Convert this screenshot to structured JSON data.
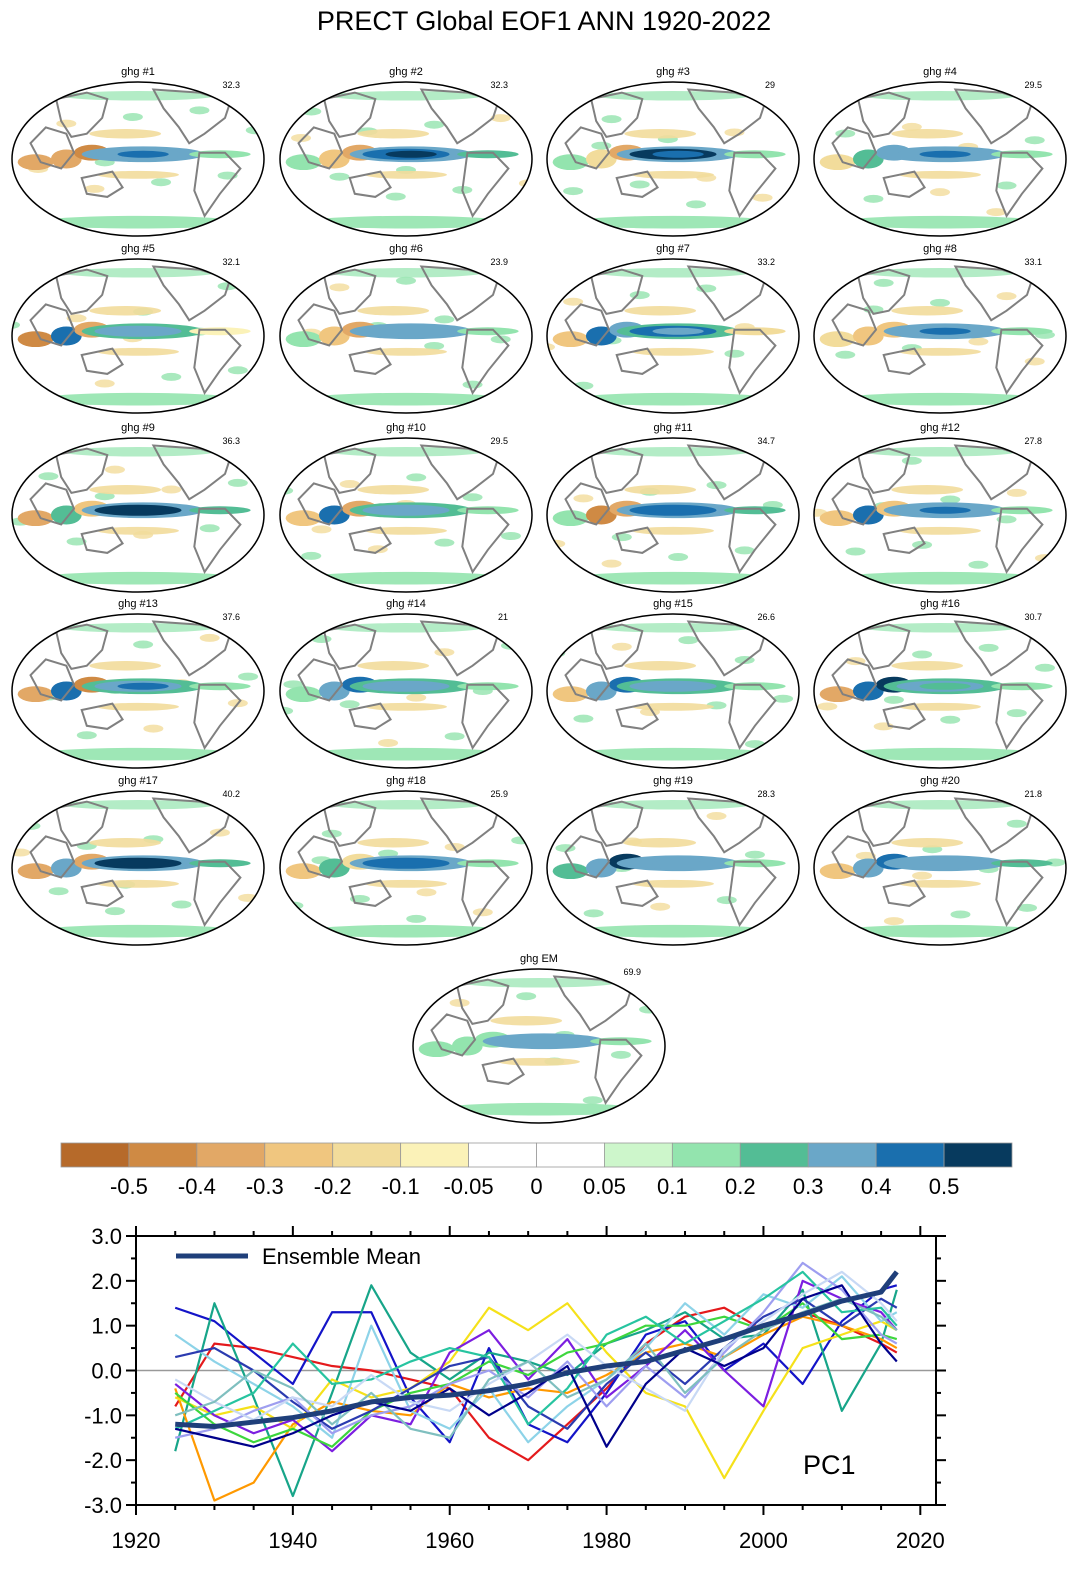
{
  "title": "PRECT Global EOF1 ANN 1920-2022",
  "panels": [
    {
      "label": "ghg #1",
      "pct": "32.3",
      "pattern": [
        -0.35,
        -0.4,
        -0.45,
        0.3,
        0.45,
        0.3,
        0.15,
        0.1
      ]
    },
    {
      "label": "ghg #2",
      "pct": "32.3",
      "pattern": [
        0.15,
        -0.3,
        -0.4,
        0.4,
        0.5,
        0.35,
        0.2,
        0.1
      ]
    },
    {
      "label": "ghg #3",
      "pct": "29",
      "pattern": [
        0.1,
        -0.2,
        -0.35,
        0.5,
        0.4,
        0.3,
        0.15,
        0.1
      ]
    },
    {
      "label": "ghg #4",
      "pct": "29.5",
      "pattern": [
        -0.2,
        0.2,
        0.3,
        0.3,
        0.4,
        0.3,
        0.15,
        0.1
      ]
    },
    {
      "label": "ghg #5",
      "pct": "32.1",
      "pattern": [
        -0.45,
        0.4,
        -0.35,
        0.35,
        0.3,
        0.25,
        -0.1,
        0.1
      ]
    },
    {
      "label": "ghg #6",
      "pct": "23.9",
      "pattern": [
        0.15,
        -0.3,
        -0.35,
        0.3,
        0.35,
        0.3,
        0.15,
        0.1
      ]
    },
    {
      "label": "ghg #7",
      "pct": "33.2",
      "pattern": [
        -0.3,
        0.45,
        0.35,
        0.4,
        0.35,
        0.2,
        -0.2,
        0.1
      ]
    },
    {
      "label": "ghg #8",
      "pct": "33.1",
      "pattern": [
        -0.2,
        -0.3,
        -0.3,
        0.3,
        0.4,
        0.35,
        0.15,
        0.1
      ]
    },
    {
      "label": "ghg #9",
      "pct": "36.3",
      "pattern": [
        -0.4,
        0.2,
        -0.3,
        0.5,
        0.5,
        0.35,
        0.2,
        0.1
      ]
    },
    {
      "label": "ghg #10",
      "pct": "29.5",
      "pattern": [
        -0.3,
        0.4,
        -0.4,
        0.35,
        0.3,
        0.25,
        0.15,
        0.1
      ]
    },
    {
      "label": "ghg #11",
      "pct": "34.7",
      "pattern": [
        0.15,
        -0.45,
        -0.35,
        0.4,
        0.45,
        0.35,
        0.2,
        0.1
      ]
    },
    {
      "label": "ghg #12",
      "pct": "27.8",
      "pattern": [
        -0.3,
        0.4,
        -0.3,
        0.35,
        0.4,
        0.3,
        0.15,
        0.1
      ]
    },
    {
      "label": "ghg #13",
      "pct": "37.6",
      "pattern": [
        -0.35,
        0.4,
        -0.45,
        0.3,
        0.4,
        0.25,
        0.15,
        0.1
      ]
    },
    {
      "label": "ghg #14",
      "pct": "21",
      "pattern": [
        0.15,
        0.3,
        0.45,
        0.3,
        0.3,
        0.2,
        0.1,
        0.1
      ]
    },
    {
      "label": "ghg #15",
      "pct": "26.6",
      "pattern": [
        -0.3,
        0.35,
        0.4,
        0.35,
        0.3,
        0.25,
        0.15,
        0.1
      ]
    },
    {
      "label": "ghg #16",
      "pct": "30.7",
      "pattern": [
        -0.35,
        0.4,
        0.5,
        0.3,
        0.25,
        0.2,
        0.15,
        0.1
      ]
    },
    {
      "label": "ghg #17",
      "pct": "40.2",
      "pattern": [
        -0.35,
        0.3,
        -0.35,
        0.5,
        0.55,
        0.35,
        0.2,
        0.1
      ]
    },
    {
      "label": "ghg #18",
      "pct": "25.9",
      "pattern": [
        -0.3,
        0.25,
        -0.2,
        0.45,
        0.4,
        0.3,
        0.15,
        0.1
      ]
    },
    {
      "label": "ghg #19",
      "pct": "28.3",
      "pattern": [
        0.2,
        0.3,
        0.5,
        0.35,
        0.35,
        0.3,
        0.15,
        0.1
      ]
    },
    {
      "label": "ghg #20",
      "pct": "21.8",
      "pattern": [
        -0.3,
        0.3,
        0.45,
        0.3,
        0.3,
        0.35,
        0.2,
        0.1
      ]
    },
    {
      "label": "ghg EM",
      "pct": "69.9",
      "pattern": [
        0.1,
        0.15,
        0.15,
        0.3,
        0.35,
        0.3,
        0.15,
        0.1
      ]
    }
  ],
  "colorbar": {
    "labels": [
      "-0.5",
      "-0.4",
      "-0.3",
      "-0.2",
      "-0.1",
      "-0.05",
      "0",
      "0.05",
      "0.1",
      "0.2",
      "0.3",
      "0.4",
      "0.5"
    ],
    "colors": [
      "#b66a2a",
      "#cf8a44",
      "#e2a866",
      "#f0c67f",
      "#f2dc9b",
      "#fbf2b8",
      "#ffffff",
      "#ffffff",
      "#cdf6cb",
      "#93e4ae",
      "#53bd95",
      "#6aa7c8",
      "#1a6fae",
      "#073a5e"
    ],
    "bounds": [
      -0.5,
      0.5
    ]
  },
  "chart_data": {
    "type": "line",
    "annotation": "PC1",
    "xlim": [
      1920,
      2022
    ],
    "ylim": [
      -3.0,
      3.0
    ],
    "xticks": [
      1920,
      1940,
      1960,
      1980,
      2000,
      2020
    ],
    "yticks": [
      3.0,
      2.0,
      1.0,
      0.0,
      -1.0,
      -2.0,
      -3.0
    ],
    "ytick_labels": [
      "3.0",
      "2.0",
      "1.0",
      "0.0",
      "-1.0",
      "-2.0",
      "-3.0"
    ],
    "grid": false,
    "legend_position": "top-left",
    "ensemble_mean": {
      "name": "Ensemble Mean",
      "color": "#1f3f7a",
      "x": [
        1925,
        1930,
        1935,
        1940,
        1945,
        1950,
        1955,
        1960,
        1965,
        1970,
        1975,
        1980,
        1985,
        1990,
        1995,
        2000,
        2005,
        2010,
        2015,
        2017
      ],
      "values": [
        -1.2,
        -1.25,
        -1.15,
        -1.05,
        -0.9,
        -0.7,
        -0.6,
        -0.55,
        -0.45,
        -0.3,
        -0.05,
        0.1,
        0.2,
        0.45,
        0.7,
        1.0,
        1.25,
        1.55,
        1.75,
        2.2
      ]
    },
    "members": [
      {
        "color": "#e41a1c",
        "values": [
          -0.8,
          0.6,
          0.5,
          0.3,
          0.1,
          0.0,
          -0.2,
          -0.4,
          -1.5,
          -2.0,
          -1.2,
          -0.4,
          0.6,
          1.2,
          1.4,
          0.9,
          1.3,
          1.0,
          0.6,
          0.4
        ]
      },
      {
        "color": "#1414c8",
        "values": [
          1.4,
          1.1,
          0.4,
          -0.3,
          1.3,
          1.3,
          -0.6,
          -1.6,
          0.5,
          -1.2,
          -1.6,
          -0.5,
          0.8,
          1.1,
          0.0,
          0.6,
          -0.3,
          1.1,
          1.8,
          1.9
        ]
      },
      {
        "color": "#17a589",
        "values": [
          -1.8,
          1.5,
          -0.6,
          -2.8,
          -0.5,
          1.9,
          0.4,
          -0.2,
          0.4,
          0.2,
          -0.1,
          0.6,
          0.9,
          1.3,
          0.7,
          0.8,
          1.8,
          -0.9,
          0.6,
          1.8
        ]
      },
      {
        "color": "#ff9900",
        "values": [
          -0.4,
          -2.9,
          -2.5,
          -1.2,
          -0.7,
          -0.9,
          -1.0,
          -0.3,
          -0.6,
          -0.4,
          -0.5,
          -0.1,
          0.4,
          0.6,
          0.3,
          0.8,
          1.2,
          1.0,
          0.7,
          0.5
        ]
      },
      {
        "color": "#f5e11a",
        "values": [
          -0.6,
          -1.0,
          -0.8,
          -1.3,
          -0.2,
          -0.6,
          -0.4,
          0.2,
          1.4,
          0.9,
          1.5,
          0.4,
          -0.5,
          -0.8,
          -2.4,
          -0.9,
          0.5,
          0.8,
          1.1,
          0.9
        ]
      },
      {
        "color": "#7c1ee0",
        "values": [
          -0.3,
          -1.0,
          -1.4,
          -1.1,
          -1.8,
          -1.0,
          -1.2,
          0.4,
          0.9,
          -0.2,
          0.7,
          -0.6,
          0.1,
          0.9,
          0.0,
          -0.8,
          2.0,
          1.6,
          1.3,
          0.9
        ]
      },
      {
        "color": "#3dd63d",
        "values": [
          -0.5,
          -1.2,
          -1.6,
          -1.3,
          -1.7,
          -0.9,
          -0.5,
          -0.3,
          0.2,
          -0.1,
          0.4,
          0.6,
          1.0,
          1.0,
          1.2,
          0.9,
          1.5,
          0.7,
          0.8,
          0.7
        ]
      },
      {
        "color": "#8dd3e8",
        "values": [
          0.8,
          0.2,
          -0.3,
          -0.8,
          -1.5,
          1.0,
          -0.9,
          -1.3,
          -0.4,
          -1.6,
          -0.8,
          -0.2,
          0.5,
          1.5,
          0.8,
          1.7,
          1.4,
          2.1,
          1.1,
          1.3
        ]
      },
      {
        "color": "#2b3bb0",
        "values": [
          0.3,
          0.5,
          0.0,
          -0.7,
          -1.3,
          -0.9,
          -0.4,
          0.1,
          0.3,
          -0.8,
          -1.3,
          -0.3,
          0.4,
          -0.3,
          0.5,
          1.2,
          1.6,
          1.0,
          1.6,
          1.4
        ]
      },
      {
        "color": "#9e9ef0",
        "values": [
          -1.5,
          -1.3,
          -0.9,
          -0.6,
          -1.4,
          -1.0,
          -0.8,
          -0.3,
          0.0,
          -0.6,
          0.2,
          -0.8,
          0.1,
          -0.6,
          0.4,
          1.3,
          2.4,
          1.8,
          0.8,
          0.6
        ]
      },
      {
        "color": "#27c4a0",
        "values": [
          -1.3,
          -0.9,
          -0.5,
          0.6,
          -0.3,
          -0.2,
          0.2,
          0.5,
          0.3,
          -1.2,
          -0.4,
          0.8,
          1.2,
          0.6,
          1.1,
          1.6,
          2.2,
          1.3,
          1.4,
          1.0
        ]
      },
      {
        "color": "#c8d9f5",
        "values": [
          -0.2,
          -0.7,
          -1.1,
          -0.6,
          -0.8,
          -0.1,
          -0.7,
          -0.9,
          -0.3,
          0.2,
          0.8,
          0.1,
          -0.4,
          -0.9,
          0.5,
          1.1,
          1.7,
          2.2,
          1.5,
          1.1
        ]
      },
      {
        "color": "#7fbfbf",
        "values": [
          -1.0,
          -0.7,
          0.0,
          -0.4,
          -1.2,
          -0.5,
          -1.3,
          -1.5,
          -0.2,
          0.2,
          -0.6,
          -0.2,
          0.6,
          -0.5,
          0.3,
          0.9,
          1.3,
          1.6,
          1.2,
          0.9
        ]
      },
      {
        "color": "#00008b",
        "values": [
          -1.3,
          -1.5,
          -1.7,
          -1.4,
          -1.0,
          -0.7,
          -0.9,
          -0.4,
          -1.0,
          -0.5,
          0.1,
          -1.7,
          -0.3,
          0.5,
          0.1,
          0.5,
          1.6,
          1.9,
          0.6,
          0.2
        ]
      }
    ]
  }
}
